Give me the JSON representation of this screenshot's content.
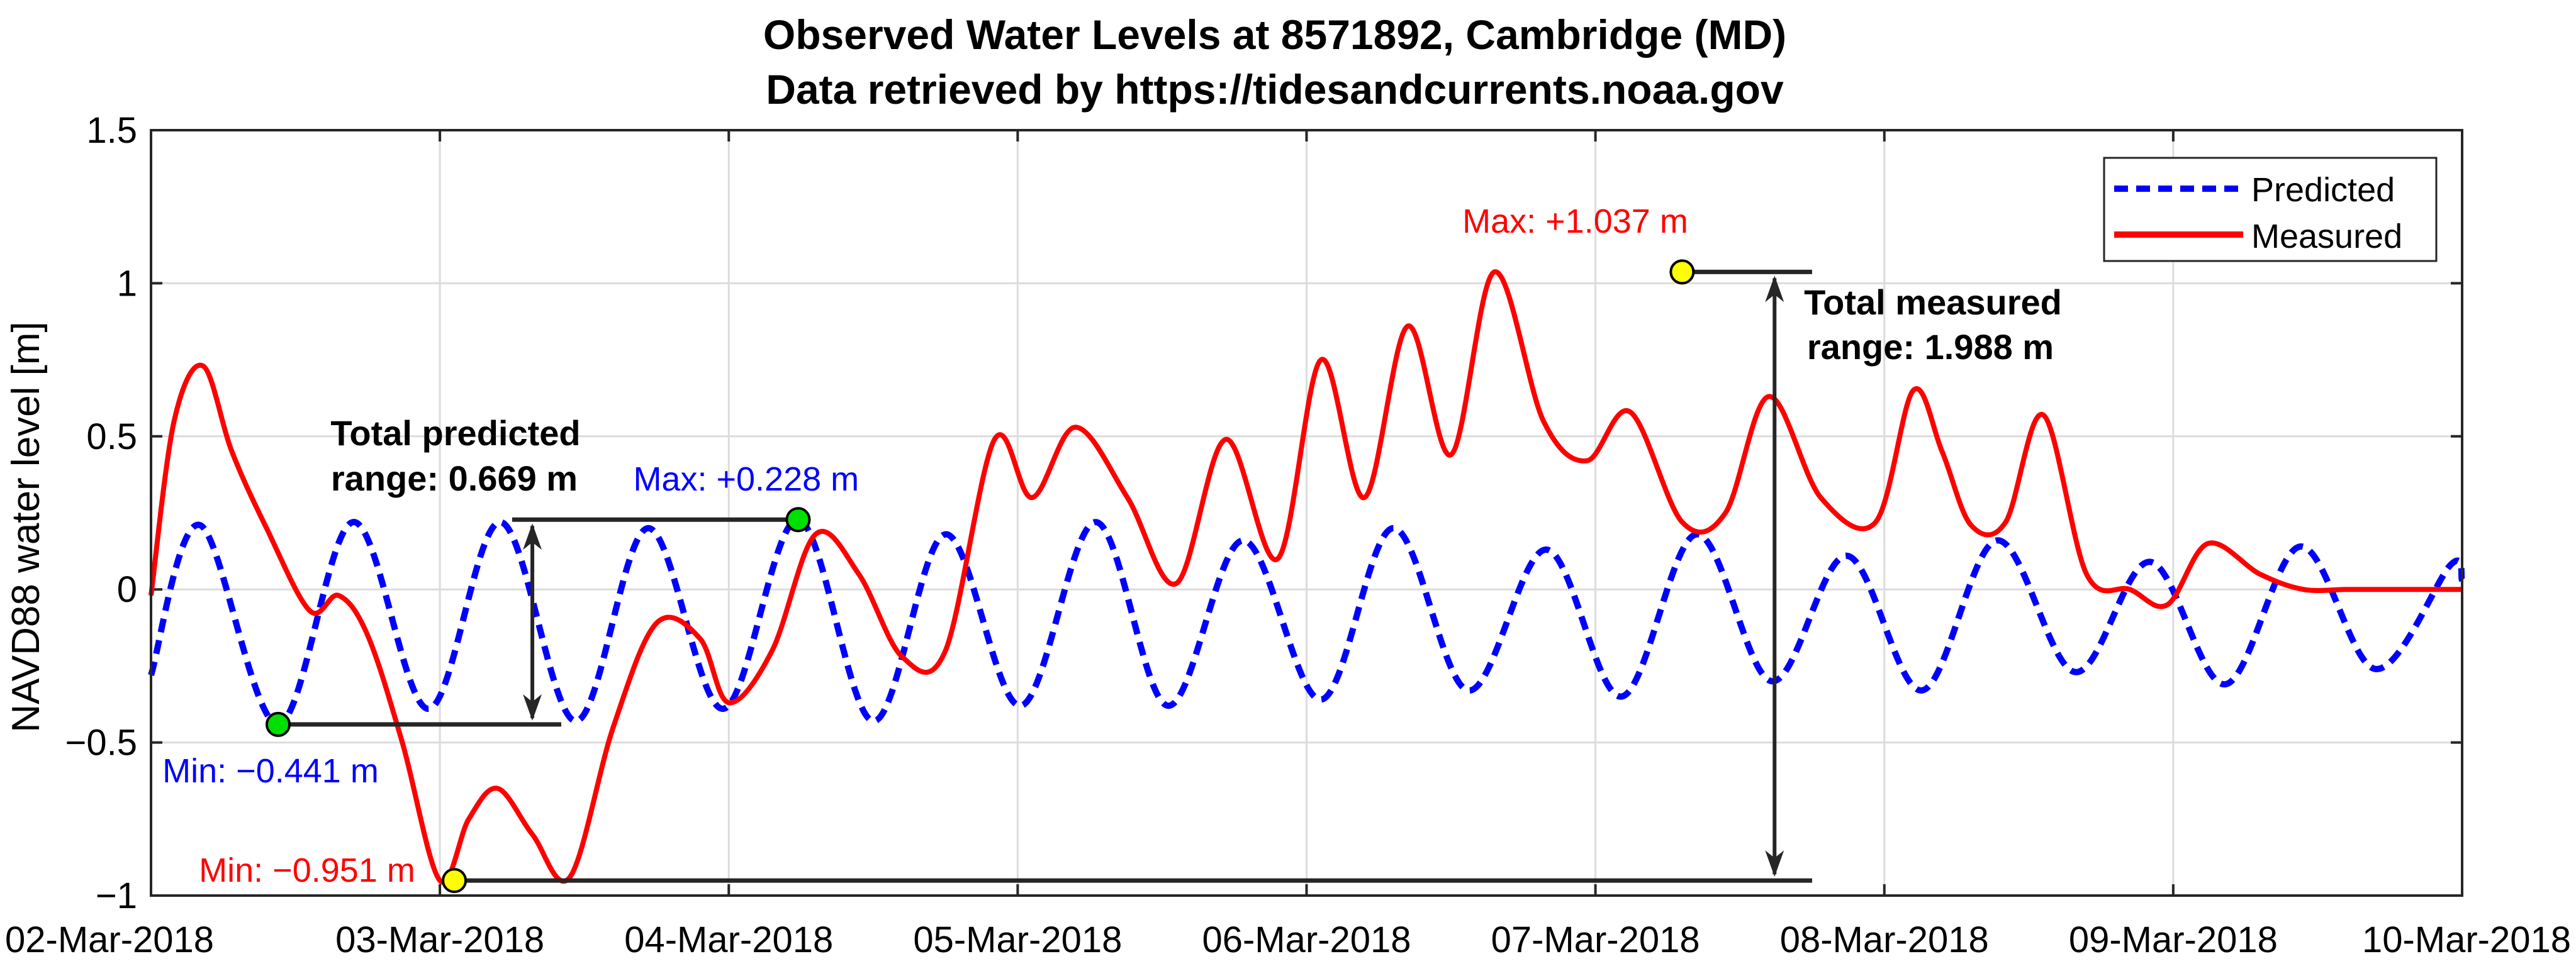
{
  "chart_data": {
    "type": "line",
    "title": "Observed Water Levels at 8571892, Cambridge (MD)",
    "subtitle": "Data retrieved by https://tidesandcurrents.noaa.gov",
    "xlabel": "",
    "ylabel": "NAVD88 water level [m]",
    "xlim_days": [
      0,
      8
    ],
    "ylim": [
      -1,
      1.5
    ],
    "grid": true,
    "legend_position": "top-right",
    "x_tick_labels": [
      "02-Mar-2018",
      "03-Mar-2018",
      "04-Mar-2018",
      "05-Mar-2018",
      "06-Mar-2018",
      "07-Mar-2018",
      "08-Mar-2018",
      "09-Mar-2018",
      "10-Mar-2018"
    ],
    "y_ticks": [
      -1,
      -0.5,
      0,
      0.5,
      1,
      1.5
    ],
    "y_tick_labels": [
      "−1",
      "−0.5",
      "0",
      "0.5",
      "1",
      "1.5"
    ],
    "series": [
      {
        "name": "Predicted",
        "color": "#0000ff",
        "style": "dashed",
        "x_unit": "days since 02-Mar-2018 00:00",
        "x": [
          0,
          0.17,
          0.44,
          0.7,
          0.96,
          1.21,
          1.47,
          1.72,
          1.98,
          2.24,
          2.5,
          2.75,
          3.01,
          3.27,
          3.52,
          3.78,
          4.05,
          4.3,
          4.56,
          4.83,
          5.09,
          5.35,
          5.61,
          5.87,
          6.13,
          6.39,
          6.66,
          6.92,
          7.18,
          7.44,
          7.7,
          7.96,
          8
        ],
        "y": [
          -0.28,
          0.21,
          -0.441,
          0.22,
          -0.39,
          0.22,
          -0.43,
          0.2,
          -0.39,
          0.228,
          -0.43,
          0.18,
          -0.38,
          0.22,
          -0.38,
          0.16,
          -0.36,
          0.2,
          -0.33,
          0.13,
          -0.35,
          0.18,
          -0.3,
          0.11,
          -0.33,
          0.16,
          -0.27,
          0.09,
          -0.31,
          0.14,
          -0.26,
          0.08,
          0.03
        ]
      },
      {
        "name": "Measured",
        "color": "#ff0000",
        "style": "solid",
        "x_unit": "days since 02-Mar-2018 00:00",
        "x": [
          0,
          0.08,
          0.18,
          0.28,
          0.4,
          0.55,
          0.65,
          0.75,
          0.87,
          1.0,
          1.1,
          1.2,
          1.32,
          1.45,
          1.6,
          1.75,
          1.9,
          2.0,
          2.15,
          2.3,
          2.45,
          2.6,
          2.75,
          2.92,
          3.05,
          3.2,
          3.38,
          3.55,
          3.72,
          3.9,
          4.05,
          4.2,
          4.35,
          4.5,
          4.65,
          4.82,
          4.97,
          5.12,
          5.3,
          5.45,
          5.6,
          5.78,
          5.97,
          6.1,
          6.2,
          6.3,
          6.42,
          6.55,
          6.7,
          6.85,
          6.98,
          7.12,
          7.3,
          7.45,
          7.6,
          7.75,
          7.88,
          8.0
        ],
        "y": [
          -0.02,
          0.55,
          0.73,
          0.45,
          0.2,
          -0.07,
          -0.02,
          -0.15,
          -0.5,
          -0.951,
          -0.75,
          -0.65,
          -0.8,
          -0.94,
          -0.45,
          -0.11,
          -0.16,
          -0.37,
          -0.2,
          0.18,
          0.05,
          -0.22,
          -0.2,
          0.49,
          0.3,
          0.53,
          0.3,
          0.02,
          0.49,
          0.1,
          0.75,
          0.3,
          0.86,
          0.44,
          1.037,
          0.55,
          0.42,
          0.58,
          0.22,
          0.25,
          0.63,
          0.3,
          0.22,
          0.65,
          0.45,
          0.21,
          0.22,
          0.57,
          0.05,
          0.0,
          -0.05,
          0.15,
          0.05,
          0.0,
          0.0,
          0.0,
          0.0,
          0.0
        ]
      }
    ],
    "annotations": {
      "pred_max": {
        "x": 2.24,
        "y": 0.228,
        "label": "Max: +0.228 m",
        "color": "#0000ff",
        "marker": "#00e000"
      },
      "pred_min": {
        "x": 0.44,
        "y": -0.441,
        "label": "Min: −0.441 m",
        "color": "#0000ff",
        "marker": "#00e000"
      },
      "meas_max": {
        "x": 5.3,
        "y": 1.037,
        "label": "Max: +1.037 m",
        "color": "#ff0000",
        "marker": "#ffff00"
      },
      "meas_min": {
        "x": 1.05,
        "y": -0.951,
        "label": "Min: −0.951 m",
        "color": "#ff0000",
        "marker": "#ffff00"
      },
      "pred_range_line1": "Total predicted",
      "pred_range_line2": "range: 0.669 m",
      "meas_range_line1": "Total measured",
      "meas_range_line2": "range: 1.988 m"
    }
  }
}
